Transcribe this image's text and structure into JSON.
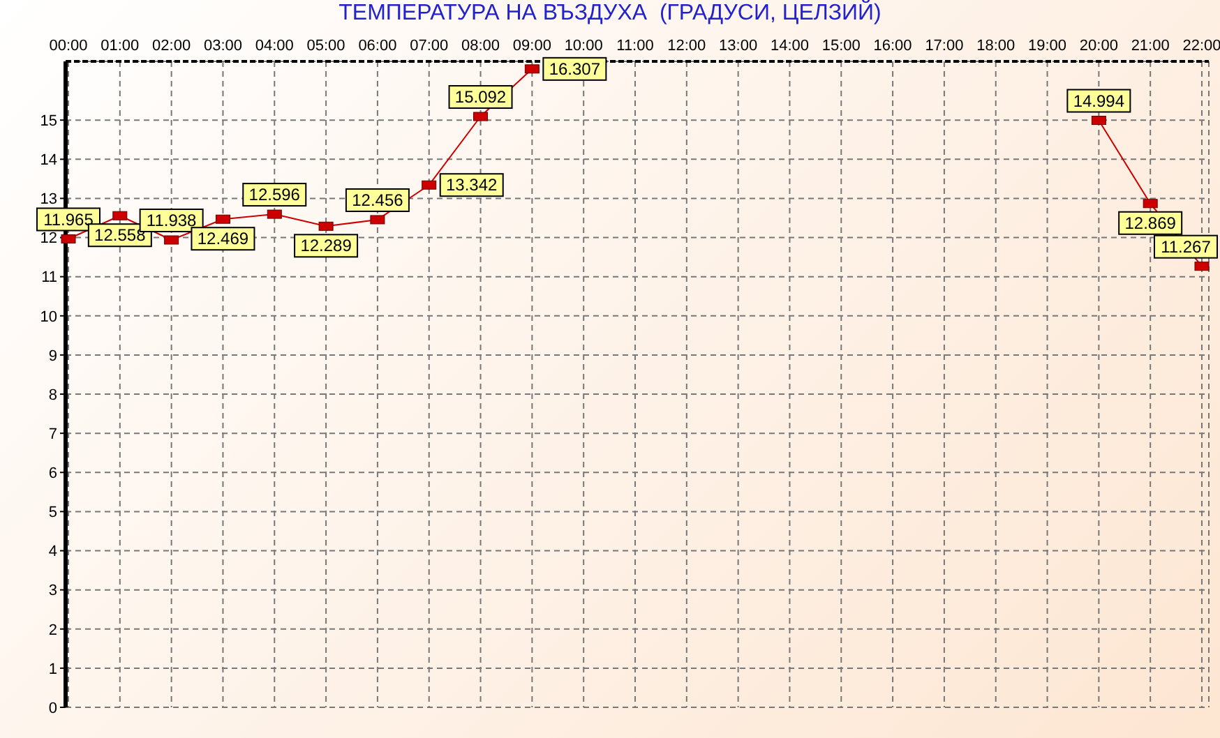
{
  "chart_data": {
    "type": "line",
    "title": "ТЕМПЕРАТУРА НА ВЪЗДУХА  (ГРАДУСИ, ЦЕЛЗИЙ)",
    "categories": [
      "00:00",
      "01:00",
      "02:00",
      "03:00",
      "04:00",
      "05:00",
      "06:00",
      "07:00",
      "08:00",
      "09:00",
      "10:00",
      "11:00",
      "12:00",
      "13:00",
      "14:00",
      "15:00",
      "16:00",
      "17:00",
      "18:00",
      "19:00",
      "20:00",
      "21:00",
      "22:00"
    ],
    "series": [
      {
        "color": "#cc0000",
        "values": [
          11.965,
          12.558,
          11.938,
          12.469,
          12.596,
          12.289,
          12.456,
          13.342,
          15.092,
          16.307,
          null,
          null,
          null,
          null,
          null,
          null,
          null,
          null,
          null,
          null,
          14.994,
          12.869,
          11.267
        ]
      }
    ],
    "ylim": [
      0,
      16.5
    ],
    "yticks": [
      0,
      1,
      2,
      3,
      4,
      5,
      6,
      7,
      8,
      9,
      10,
      11,
      12,
      13,
      14,
      15
    ],
    "grid": true,
    "data_labels": true,
    "marker": "square",
    "line_style": "solid",
    "legend": false
  }
}
